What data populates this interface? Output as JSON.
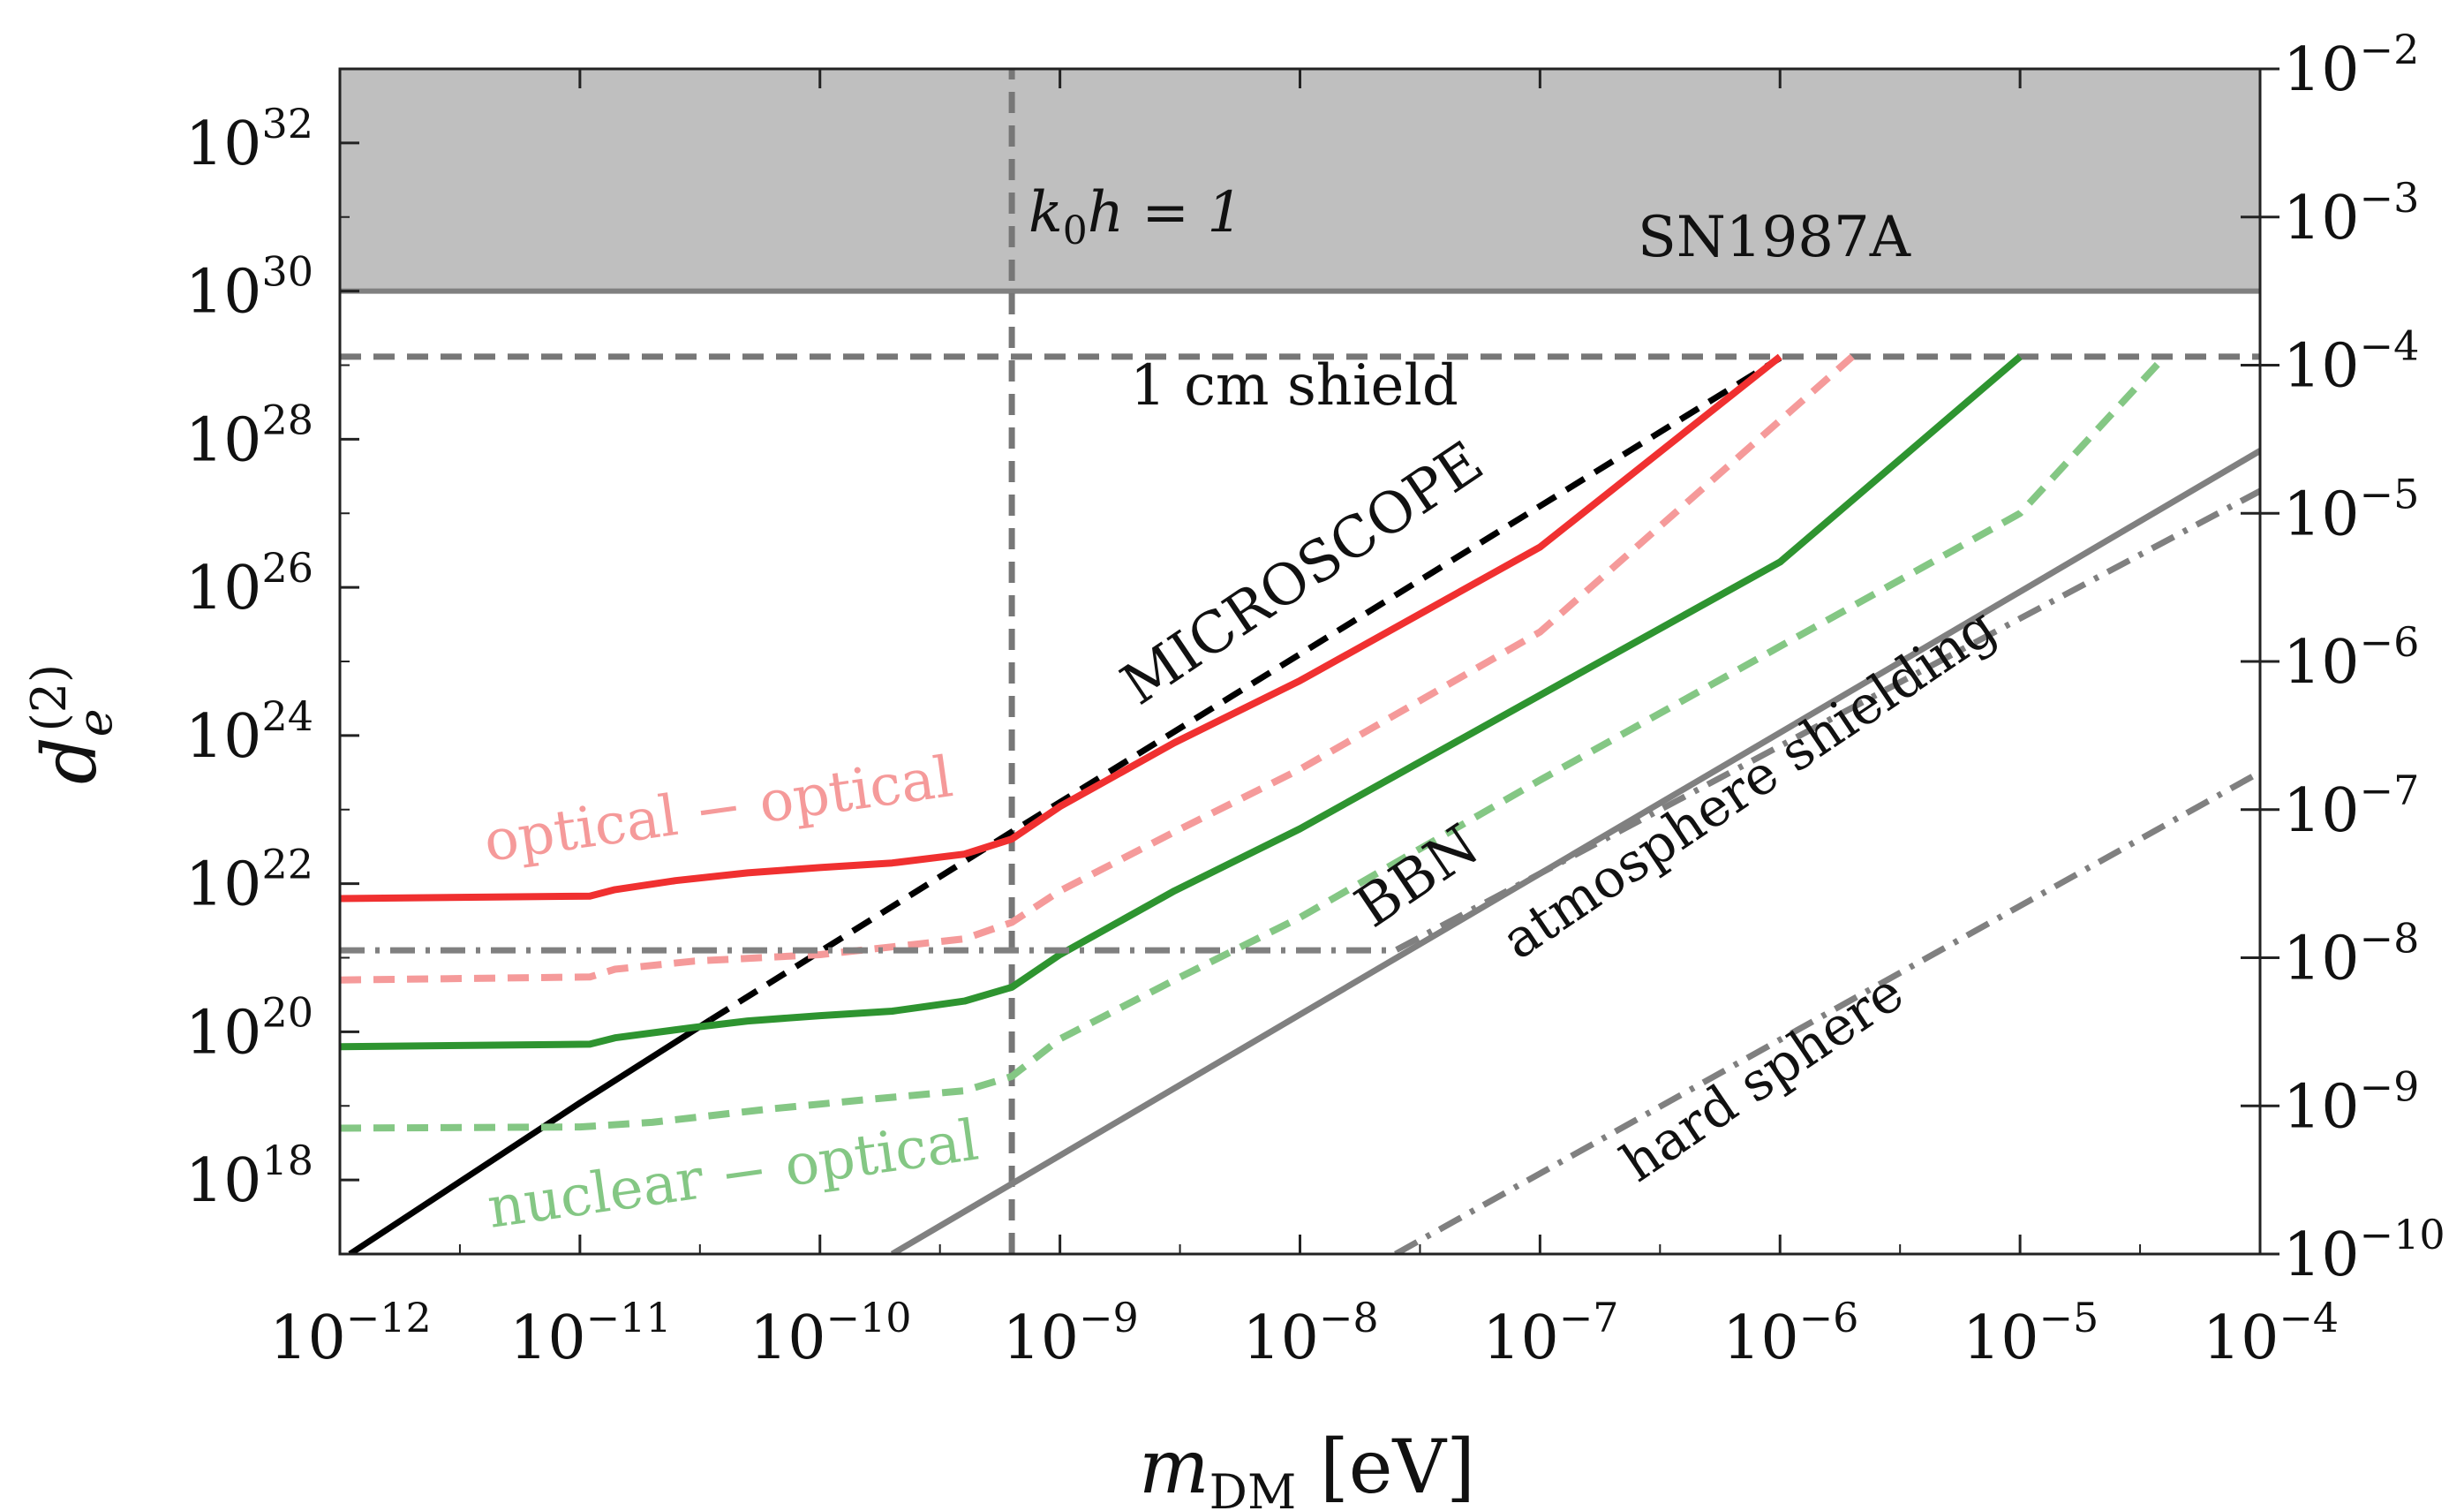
{
  "chart_data": {
    "type": "line",
    "xlabel": {
      "base": "m",
      "sub": "DM",
      "unit": " [eV]"
    },
    "ylabel": {
      "base": "d",
      "sub": "e",
      "sup": "(2)"
    },
    "x_scale": "log",
    "y_scale": "log",
    "xlim": [
      1e-12,
      0.0001
    ],
    "ylim": [
      1e+17,
      1e+33
    ],
    "y2lim": [
      1e-10,
      0.01
    ],
    "grid": false,
    "x_ticks": [
      {
        "base": "10",
        "exp": "−12",
        "value": 1e-12
      },
      {
        "base": "10",
        "exp": "−11",
        "value": 1e-11
      },
      {
        "base": "10",
        "exp": "−10",
        "value": 1e-10
      },
      {
        "base": "10",
        "exp": "−9",
        "value": 1e-09
      },
      {
        "base": "10",
        "exp": "−8",
        "value": 1e-08
      },
      {
        "base": "10",
        "exp": "−7",
        "value": 1e-07
      },
      {
        "base": "10",
        "exp": "−6",
        "value": 1e-06
      },
      {
        "base": "10",
        "exp": "−5",
        "value": 1e-05
      },
      {
        "base": "10",
        "exp": "−4",
        "value": 0.0001
      }
    ],
    "y_ticks": [
      {
        "base": "10",
        "exp": "18",
        "value": 1e+18
      },
      {
        "base": "10",
        "exp": "20",
        "value": 1e+20
      },
      {
        "base": "10",
        "exp": "22",
        "value": 1e+22
      },
      {
        "base": "10",
        "exp": "24",
        "value": 1e+24
      },
      {
        "base": "10",
        "exp": "26",
        "value": 1e+26
      },
      {
        "base": "10",
        "exp": "28",
        "value": 1e+28
      },
      {
        "base": "10",
        "exp": "30",
        "value": 1e+30
      },
      {
        "base": "10",
        "exp": "32",
        "value": 1e+32
      }
    ],
    "y2_ticks": [
      {
        "base": "10",
        "exp": "−10",
        "value": 1e-10
      },
      {
        "base": "10",
        "exp": "−9",
        "value": 1e-09
      },
      {
        "base": "10",
        "exp": "−8",
        "value": 1e-08
      },
      {
        "base": "10",
        "exp": "−7",
        "value": 1e-07
      },
      {
        "base": "10",
        "exp": "−6",
        "value": 1e-06
      },
      {
        "base": "10",
        "exp": "−5",
        "value": 1e-05
      },
      {
        "base": "10",
        "exp": "−4",
        "value": 0.0001
      },
      {
        "base": "10",
        "exp": "−3",
        "value": 0.001
      },
      {
        "base": "10",
        "exp": "−2",
        "value": 0.01
      }
    ],
    "regions": [
      {
        "key": "sn1987a",
        "label": "SN1987A",
        "y_min": 1e+30,
        "y_max": 1e+33,
        "fill": "#bfbfbf",
        "edge": "#808080"
      }
    ],
    "annotations": {
      "k0h": {
        "main": "k",
        "sub": "0",
        "rest": "h = 1"
      },
      "shield": "1 cm shield",
      "microscope": "MICROSCOPE",
      "optical": "optical − optical",
      "nuclear": "nuclear − optical",
      "bbn": "BBN",
      "atmosphere": "atmosphere shielding",
      "hardsphere": "hard sphere"
    },
    "series": [
      {
        "key": "k0h",
        "color": "#777777",
        "style": "dashed",
        "width": 7,
        "points": [
          [
            6.3e-10,
            1e+17
          ],
          [
            6.3e-10,
            1e+33
          ]
        ]
      },
      {
        "key": "shield",
        "color": "#777777",
        "style": "dashed",
        "width": 7,
        "points": [
          [
            1e-12,
            1.3e+29
          ],
          [
            0.0001,
            1.3e+29
          ]
        ]
      },
      {
        "key": "microscope",
        "color": "#000000",
        "style": "solid",
        "width": 7,
        "points": [
          [
            1.1e-12,
            1e+17
          ],
          [
            1e-11,
            1.1e+19
          ],
          [
            3.5e-11,
            1.45e+20
          ]
        ]
      },
      {
        "key": "microscope_dash",
        "color": "#000000",
        "style": "dashed",
        "width": 7,
        "points": [
          [
            3.5e-11,
            1.45e+20
          ],
          [
            6.3e-10,
            5e+22
          ],
          [
            1e-06,
            1.25e+29
          ]
        ]
      },
      {
        "key": "red_solid",
        "color": "#f03030",
        "style": "solid",
        "width": 8,
        "points": [
          [
            1e-12,
            6.3e+21
          ],
          [
            1.1e-11,
            6.8e+21
          ],
          [
            1.4e-11,
            8.3e+21
          ],
          [
            2.5e-11,
            1.1e+22
          ],
          [
            5e-11,
            1.4e+22
          ],
          [
            1e-10,
            1.65e+22
          ],
          [
            2e-10,
            1.9e+22
          ],
          [
            4e-10,
            2.5e+22
          ],
          [
            6.3e-10,
            4e+22
          ],
          [
            1e-09,
            1.1e+23
          ],
          [
            3e-09,
            8e+23
          ],
          [
            1e-08,
            5.5e+24
          ],
          [
            1e-07,
            3.5e+26
          ],
          [
            1e-06,
            1.3e+29
          ]
        ]
      },
      {
        "key": "red_dash",
        "color": "#f59a9a",
        "style": "dashed",
        "width": 8,
        "points": [
          [
            1e-12,
            5e+20
          ],
          [
            1.1e-11,
            5.5e+20
          ],
          [
            1.4e-11,
            7e+20
          ],
          [
            3e-11,
            9e+20
          ],
          [
            1e-10,
            1.1e+21
          ],
          [
            2e-10,
            1.4e+21
          ],
          [
            4e-10,
            1.8e+21
          ],
          [
            6.3e-10,
            3e+21
          ],
          [
            1e-09,
            8e+21
          ],
          [
            3e-09,
            5e+22
          ],
          [
            1e-08,
            3.5e+23
          ],
          [
            1e-07,
            2.5e+25
          ],
          [
            2e-06,
            1.3e+29
          ]
        ]
      },
      {
        "key": "green_solid",
        "color": "#2e9430",
        "style": "solid",
        "width": 8,
        "points": [
          [
            1e-12,
            6.3e+19
          ],
          [
            1.1e-11,
            6.8e+19
          ],
          [
            1.4e-11,
            8.3e+19
          ],
          [
            3e-11,
            1.15e+20
          ],
          [
            5e-11,
            1.4e+20
          ],
          [
            1e-10,
            1.65e+20
          ],
          [
            2e-10,
            1.9e+20
          ],
          [
            4e-10,
            2.6e+20
          ],
          [
            6.3e-10,
            4e+20
          ],
          [
            1e-09,
            1.1e+21
          ],
          [
            3e-09,
            8e+21
          ],
          [
            1e-08,
            5.5e+22
          ],
          [
            1e-07,
            3.5e+24
          ],
          [
            1e-06,
            2.2e+26
          ],
          [
            1e-05,
            1.3e+29
          ]
        ]
      },
      {
        "key": "green_dash",
        "color": "#84c784",
        "style": "dashed",
        "width": 8,
        "points": [
          [
            1e-12,
            5e+18
          ],
          [
            1e-11,
            5.2e+18
          ],
          [
            2e-11,
            6e+18
          ],
          [
            6e-11,
            9e+18
          ],
          [
            1.5e-10,
            1.2e+19
          ],
          [
            4e-10,
            1.6e+19
          ],
          [
            6.3e-10,
            2.5e+19
          ],
          [
            1e-09,
            8e+19
          ],
          [
            3e-09,
            5e+20
          ],
          [
            1e-08,
            3.5e+21
          ],
          [
            1e-07,
            2.5e+23
          ],
          [
            1e-06,
            1.6e+25
          ],
          [
            1e-05,
            1e+27
          ],
          [
            4e-05,
            1.3e+29
          ]
        ]
      },
      {
        "key": "bbn",
        "color": "#808080",
        "style": "solid",
        "width": 7,
        "points": [
          [
            2e-10,
            1e+17
          ],
          [
            0.0001,
            7e+27
          ]
        ]
      },
      {
        "key": "atmosphere",
        "color": "#808080",
        "style": "dashdot",
        "width": 7,
        "points": [
          [
            1e-12,
            1.26e+21
          ],
          [
            2.5e-08,
            1.26e+21
          ],
          [
            0.0001,
            2e+27
          ]
        ]
      },
      {
        "key": "hardsphere",
        "color": "#808080",
        "style": "dashdot",
        "width": 7,
        "points": [
          [
            2.5e-08,
            1e+17
          ],
          [
            0.0001,
            3.2e+23
          ]
        ]
      }
    ]
  }
}
